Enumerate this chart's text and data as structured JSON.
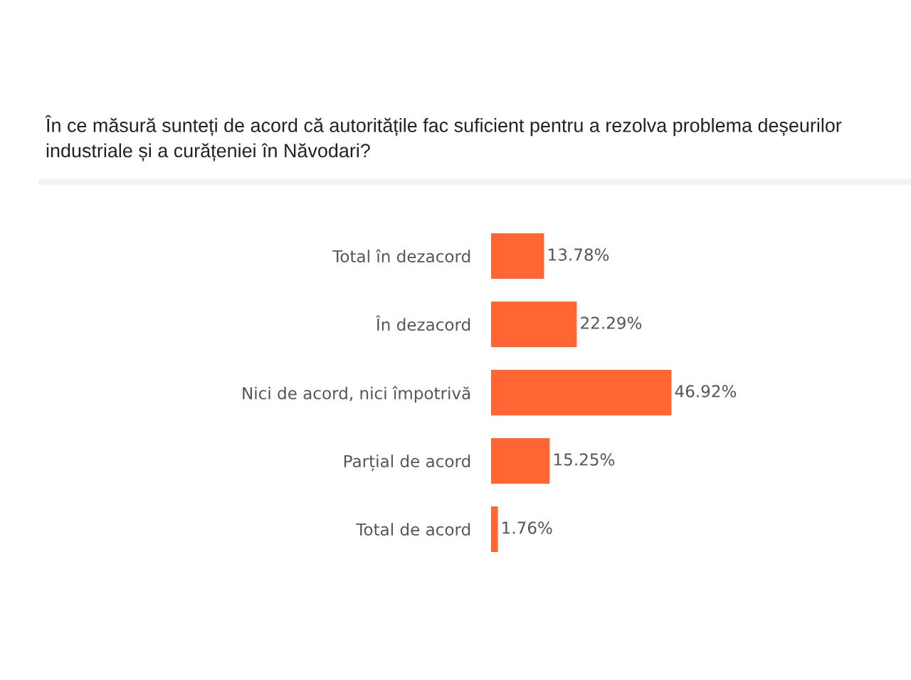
{
  "chart_data": {
    "type": "bar",
    "orientation": "horizontal",
    "title": "În ce măsură sunteți de acord că autoritățile fac suficient pentru a rezolva problema deșeurilor industriale și a curățeniei în Năvodari?",
    "categories": [
      "Total în dezacord",
      "În dezacord",
      "Nici de acord, nici împotrivă",
      "Parțial de acord",
      "Total de acord"
    ],
    "values": [
      13.78,
      22.29,
      46.92,
      15.25,
      1.76
    ],
    "value_labels": [
      "13.78%",
      "22.29%",
      "46.92%",
      "15.25%",
      "1.76%"
    ],
    "color": "#ff6633",
    "tick_labels": "y"
  }
}
